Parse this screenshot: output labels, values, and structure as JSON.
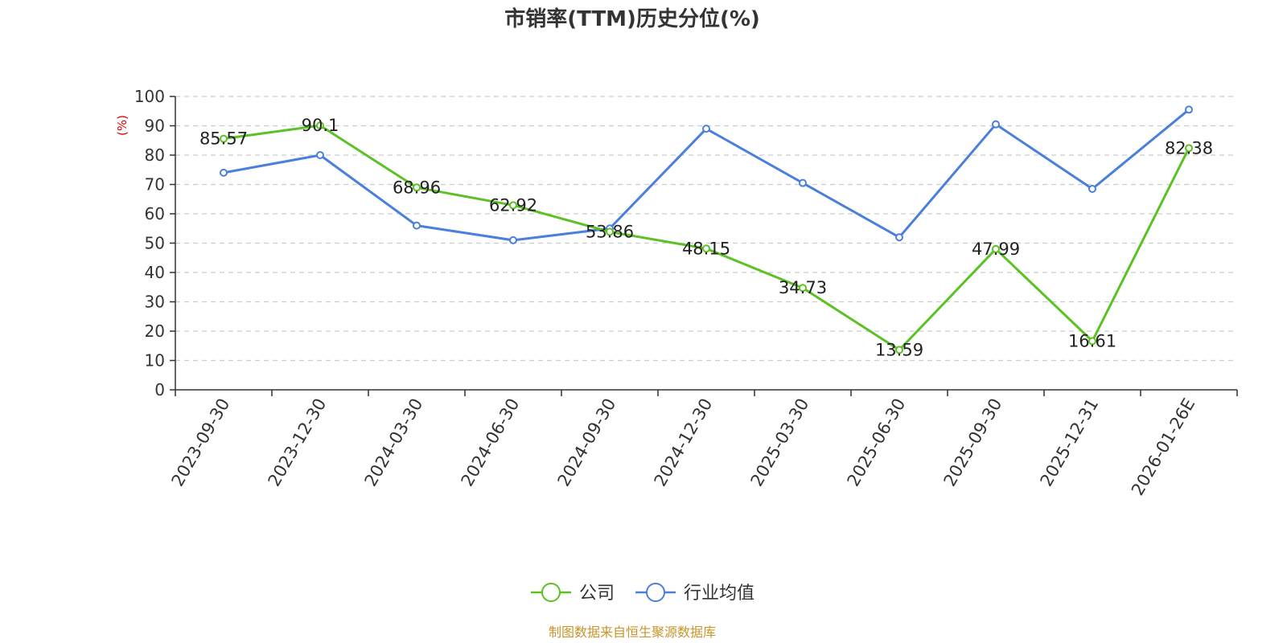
{
  "chart_data": {
    "type": "line",
    "title": "市销率(TTM)历史分位(%)",
    "ylabel": "(%)",
    "ylim": [
      0,
      100
    ],
    "yticks": [
      0,
      10,
      20,
      30,
      40,
      50,
      60,
      70,
      80,
      90,
      100
    ],
    "grid": true,
    "legend_position": "bottom",
    "categories": [
      "2023-09-30",
      "2023-12-30",
      "2024-03-30",
      "2024-06-30",
      "2024-09-30",
      "2024-12-30",
      "2025-03-30",
      "2025-06-30",
      "2025-09-30",
      "2025-12-31",
      "2026-01-26E"
    ],
    "series": [
      {
        "name": "公司",
        "color": "#5cc125",
        "values": [
          85.57,
          90.1,
          68.96,
          62.92,
          53.86,
          48.15,
          34.73,
          13.59,
          47.99,
          16.61,
          82.38
        ],
        "labels": [
          "85.57",
          "90.1",
          "68.96",
          "62.92",
          "53.86",
          "48.15",
          "34.73",
          "13.59",
          "47.99",
          "16.61",
          "82.38"
        ]
      },
      {
        "name": "行业均值",
        "color": "#4a7fdc",
        "values": [
          74,
          80,
          56,
          51,
          55,
          89,
          70.5,
          52,
          90.5,
          68.5,
          95.5
        ]
      }
    ]
  },
  "source": "制图数据来自恒生聚源数据库",
  "colors": {
    "source_text": "#c8952a",
    "ylabel_text": "#e00000",
    "axis": "#333333",
    "grid": "#cccccc"
  }
}
